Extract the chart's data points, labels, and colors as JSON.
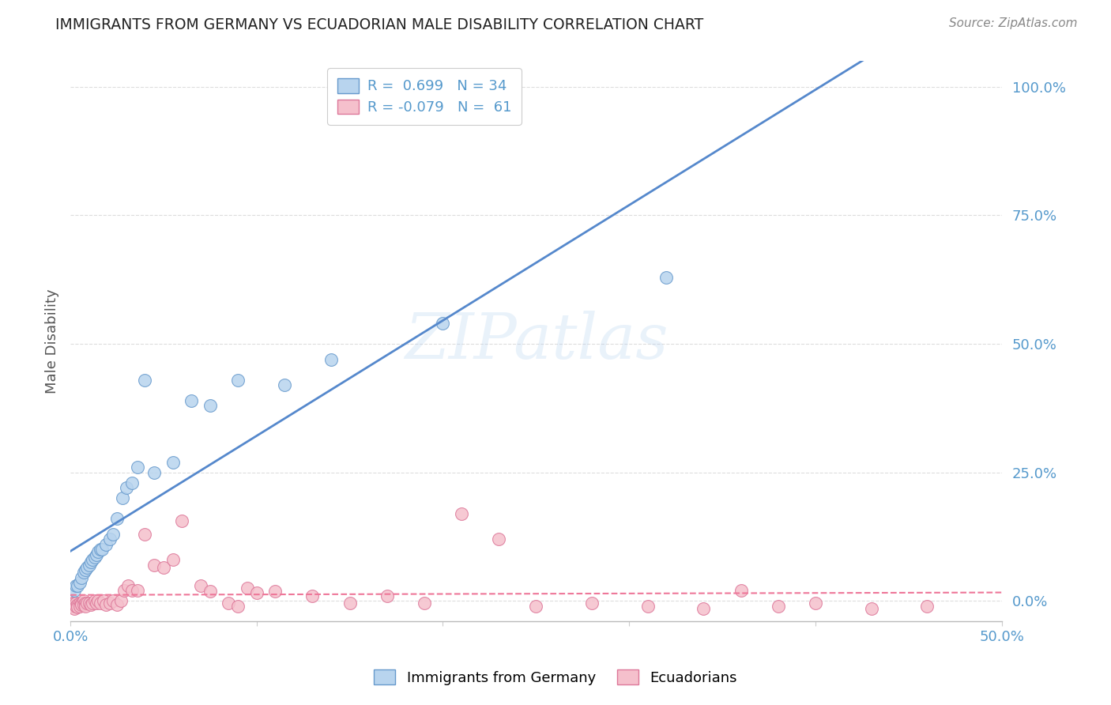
{
  "title": "IMMIGRANTS FROM GERMANY VS ECUADORIAN MALE DISABILITY CORRELATION CHART",
  "source": "Source: ZipAtlas.com",
  "ylabel": "Male Disability",
  "legend1_label": "Immigrants from Germany",
  "legend2_label": "Ecuadorians",
  "R_blue": 0.699,
  "N_blue": 34,
  "R_pink": -0.079,
  "N_pink": 61,
  "blue_fill": "#B8D4EE",
  "pink_fill": "#F5C0CC",
  "blue_edge": "#6699CC",
  "pink_edge": "#DD7799",
  "blue_line": "#5588CC",
  "pink_line": "#EE7799",
  "watermark": "ZIPatlas",
  "blue_x": [
    0.002,
    0.003,
    0.004,
    0.005,
    0.006,
    0.007,
    0.008,
    0.009,
    0.01,
    0.011,
    0.012,
    0.013,
    0.014,
    0.015,
    0.016,
    0.017,
    0.019,
    0.021,
    0.023,
    0.025,
    0.028,
    0.03,
    0.033,
    0.036,
    0.04,
    0.045,
    0.055,
    0.065,
    0.075,
    0.09,
    0.115,
    0.14,
    0.2,
    0.32
  ],
  "blue_y": [
    0.02,
    0.03,
    0.03,
    0.035,
    0.045,
    0.055,
    0.06,
    0.065,
    0.07,
    0.075,
    0.08,
    0.085,
    0.09,
    0.095,
    0.1,
    0.1,
    0.11,
    0.12,
    0.13,
    0.16,
    0.2,
    0.22,
    0.23,
    0.26,
    0.43,
    0.25,
    0.27,
    0.39,
    0.38,
    0.43,
    0.42,
    0.47,
    0.54,
    0.63
  ],
  "pink_x": [
    0.001,
    0.001,
    0.002,
    0.002,
    0.003,
    0.003,
    0.004,
    0.004,
    0.005,
    0.005,
    0.006,
    0.006,
    0.007,
    0.007,
    0.008,
    0.008,
    0.009,
    0.01,
    0.011,
    0.012,
    0.013,
    0.014,
    0.015,
    0.016,
    0.018,
    0.019,
    0.021,
    0.023,
    0.025,
    0.027,
    0.029,
    0.031,
    0.033,
    0.036,
    0.04,
    0.045,
    0.05,
    0.055,
    0.06,
    0.07,
    0.075,
    0.085,
    0.09,
    0.095,
    0.1,
    0.11,
    0.13,
    0.15,
    0.17,
    0.19,
    0.21,
    0.23,
    0.25,
    0.28,
    0.31,
    0.34,
    0.36,
    0.38,
    0.4,
    0.43,
    0.46
  ],
  "pink_y": [
    -0.005,
    -0.01,
    -0.005,
    -0.015,
    -0.005,
    -0.01,
    -0.008,
    -0.012,
    -0.005,
    -0.01,
    -0.005,
    -0.008,
    0.0,
    -0.008,
    -0.005,
    -0.01,
    -0.005,
    -0.005,
    -0.008,
    -0.005,
    0.0,
    -0.005,
    0.0,
    -0.005,
    0.0,
    -0.008,
    -0.005,
    0.0,
    -0.008,
    0.0,
    0.02,
    0.03,
    0.02,
    0.02,
    0.13,
    0.07,
    0.065,
    0.08,
    0.155,
    0.03,
    0.018,
    -0.005,
    -0.01,
    0.025,
    0.015,
    0.018,
    0.01,
    -0.005,
    0.01,
    -0.005,
    0.17,
    0.12,
    -0.01,
    -0.005,
    -0.01,
    -0.015,
    0.02,
    -0.01,
    -0.005,
    -0.015,
    -0.01
  ],
  "xmin": 0.0,
  "xmax": 0.5,
  "ymin": -0.04,
  "ymax": 1.05,
  "right_yticks": [
    0.0,
    0.25,
    0.5,
    0.75,
    1.0
  ],
  "right_yticklabels": [
    "0.0%",
    "25.0%",
    "50.0%",
    "75.0%",
    "100.0%"
  ],
  "xtick_positions": [
    0.0,
    0.1,
    0.2,
    0.3,
    0.4,
    0.5
  ],
  "xtick_labels": [
    "0.0%",
    "",
    "",
    "",
    "",
    "50.0%"
  ],
  "background_color": "#FFFFFF",
  "grid_color": "#DDDDDD",
  "tick_color": "#5599CC"
}
